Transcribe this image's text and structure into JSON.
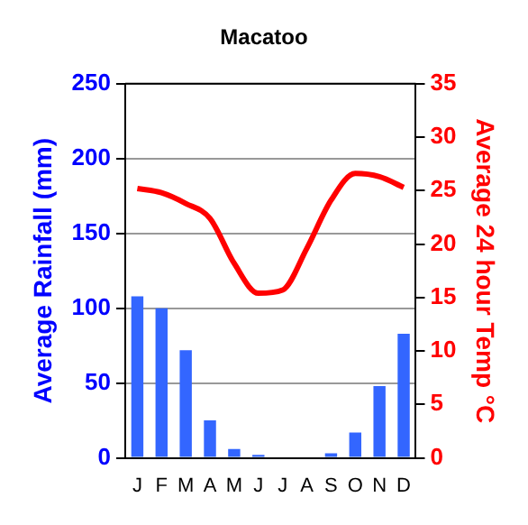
{
  "chart_data": {
    "type": "bar",
    "title": "Macatoo",
    "ylabel": "Average Rainfall (mm)",
    "y2label": "Average 24 hour Temp °C",
    "categories": [
      "J",
      "F",
      "M",
      "A",
      "M",
      "J",
      "J",
      "A",
      "S",
      "O",
      "N",
      "D"
    ],
    "series": [
      {
        "color": "#3366ff",
        "values": [
          108,
          100,
          72,
          25,
          6,
          2,
          0,
          0,
          3,
          17,
          48,
          83
        ]
      },
      {
        "type": "line",
        "axis": "y2",
        "color": "#ff0000",
        "values": [
          25.2,
          24.8,
          23.8,
          22.4,
          18.2,
          15.4,
          15.7,
          19.6,
          24.1,
          26.6,
          26.3,
          25.3
        ]
      }
    ],
    "ylim": [
      0,
      250
    ],
    "yticks": [
      0,
      50,
      100,
      150,
      200,
      250
    ],
    "y2lim": [
      0,
      35
    ],
    "y2ticks": [
      0,
      5,
      10,
      15,
      20,
      25,
      30,
      35
    ],
    "grid": "y",
    "legend": false,
    "marker": "none"
  }
}
